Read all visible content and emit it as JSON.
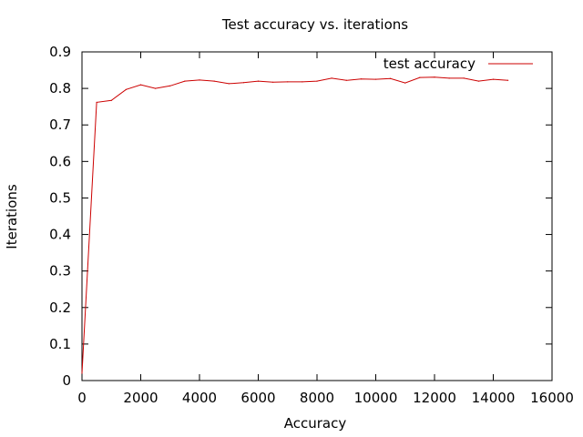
{
  "chart_data": {
    "type": "line",
    "title": "Test accuracy vs. iterations",
    "xlabel": "Accuracy",
    "ylabel": "Iterations",
    "xlim": [
      0,
      16000
    ],
    "ylim": [
      0,
      0.9
    ],
    "x_ticks": [
      "0",
      "2000",
      "4000",
      "6000",
      "8000",
      "10000",
      "12000",
      "14000",
      "16000"
    ],
    "y_ticks": [
      "0",
      "0.1",
      "0.2",
      "0.3",
      "0.4",
      "0.5",
      "0.6",
      "0.7",
      "0.8",
      "0.9"
    ],
    "grid": false,
    "legend_position": "top-right",
    "series": [
      {
        "name": "test accuracy",
        "color": "#cc0000",
        "x": [
          0,
          500,
          1000,
          1500,
          2000,
          2500,
          3000,
          3500,
          4000,
          4500,
          5000,
          5500,
          6000,
          6500,
          7000,
          7500,
          8000,
          8500,
          9000,
          9500,
          10000,
          10500,
          11000,
          11500,
          12000,
          12500,
          13000,
          13500,
          14000,
          14500
        ],
        "y": [
          0.02,
          0.762,
          0.767,
          0.797,
          0.81,
          0.8,
          0.807,
          0.82,
          0.823,
          0.82,
          0.813,
          0.816,
          0.82,
          0.817,
          0.818,
          0.818,
          0.82,
          0.828,
          0.822,
          0.826,
          0.825,
          0.827,
          0.815,
          0.83,
          0.831,
          0.828,
          0.828,
          0.82,
          0.825,
          0.822
        ]
      }
    ]
  }
}
